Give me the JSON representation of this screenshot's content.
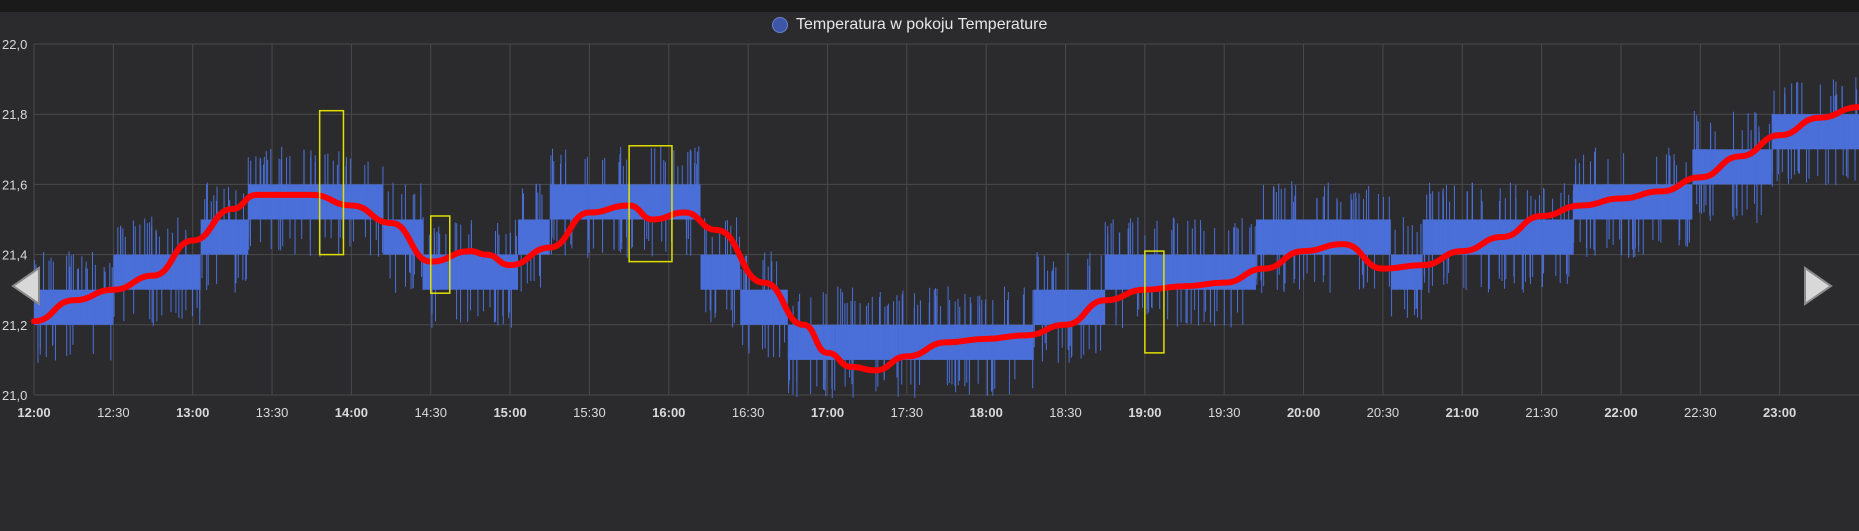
{
  "colors": {
    "background": "#2b2b2d",
    "grid": "#4a4a4d",
    "axis_text": "#d9d9d9",
    "series_fill": "#4a6fd8",
    "series_legend": "#3e56a8",
    "trend": "#ff0000",
    "highlight": "#e0e000"
  },
  "icons": {
    "prev": "triangle-left-icon",
    "next": "triangle-right-icon"
  },
  "chart_data": {
    "type": "line",
    "legend_position": "top-center",
    "grid": true,
    "ylim": [
      21.0,
      22.0
    ],
    "y_ticks": [
      "21,0",
      "21,2",
      "21,4",
      "21,6",
      "21,8",
      "22,0"
    ],
    "y_tick_values": [
      21.0,
      21.2,
      21.4,
      21.6,
      21.8,
      22.0
    ],
    "x_ticks": [
      {
        "label": "12:00",
        "hour": 12.0,
        "bold": true
      },
      {
        "label": "12:30",
        "hour": 12.5,
        "bold": false
      },
      {
        "label": "13:00",
        "hour": 13.0,
        "bold": true
      },
      {
        "label": "13:30",
        "hour": 13.5,
        "bold": false
      },
      {
        "label": "14:00",
        "hour": 14.0,
        "bold": true
      },
      {
        "label": "14:30",
        "hour": 14.5,
        "bold": false
      },
      {
        "label": "15:00",
        "hour": 15.0,
        "bold": true
      },
      {
        "label": "15:30",
        "hour": 15.5,
        "bold": false
      },
      {
        "label": "16:00",
        "hour": 16.0,
        "bold": true
      },
      {
        "label": "16:30",
        "hour": 16.5,
        "bold": false
      },
      {
        "label": "17:00",
        "hour": 17.0,
        "bold": true
      },
      {
        "label": "17:30",
        "hour": 17.5,
        "bold": false
      },
      {
        "label": "18:00",
        "hour": 18.0,
        "bold": true
      },
      {
        "label": "18:30",
        "hour": 18.5,
        "bold": false
      },
      {
        "label": "19:00",
        "hour": 19.0,
        "bold": true
      },
      {
        "label": "19:30",
        "hour": 19.5,
        "bold": false
      },
      {
        "label": "20:00",
        "hour": 20.0,
        "bold": true
      },
      {
        "label": "20:30",
        "hour": 20.5,
        "bold": false
      },
      {
        "label": "21:00",
        "hour": 21.0,
        "bold": true
      },
      {
        "label": "21:30",
        "hour": 21.5,
        "bold": false
      },
      {
        "label": "22:00",
        "hour": 22.0,
        "bold": true
      },
      {
        "label": "22:30",
        "hour": 22.5,
        "bold": false
      },
      {
        "label": "23:00",
        "hour": 23.0,
        "bold": true
      }
    ],
    "xlim_hours": [
      12.0,
      23.5
    ],
    "series": [
      {
        "name": "Temperatura w pokoju Temperature",
        "style": "step-band",
        "segments": [
          {
            "t0": 12.0,
            "t1": 12.5,
            "low": 21.2,
            "high": 21.3
          },
          {
            "t0": 12.5,
            "t1": 13.05,
            "low": 21.3,
            "high": 21.4
          },
          {
            "t0": 13.05,
            "t1": 13.35,
            "low": 21.4,
            "high": 21.5
          },
          {
            "t0": 13.35,
            "t1": 14.2,
            "low": 21.5,
            "high": 21.6
          },
          {
            "t0": 14.2,
            "t1": 14.45,
            "low": 21.4,
            "high": 21.5
          },
          {
            "t0": 14.45,
            "t1": 15.05,
            "low": 21.3,
            "high": 21.4
          },
          {
            "t0": 15.05,
            "t1": 15.25,
            "low": 21.4,
            "high": 21.5
          },
          {
            "t0": 15.25,
            "t1": 16.2,
            "low": 21.5,
            "high": 21.6
          },
          {
            "t0": 16.2,
            "t1": 16.45,
            "low": 21.3,
            "high": 21.4
          },
          {
            "t0": 16.45,
            "t1": 16.75,
            "low": 21.2,
            "high": 21.3
          },
          {
            "t0": 16.75,
            "t1": 17.05,
            "low": 21.1,
            "high": 21.2
          },
          {
            "t0": 17.05,
            "t1": 17.45,
            "low": 21.1,
            "high": 21.2
          },
          {
            "t0": 17.45,
            "t1": 18.3,
            "low": 21.1,
            "high": 21.2
          },
          {
            "t0": 18.3,
            "t1": 18.75,
            "low": 21.2,
            "high": 21.3
          },
          {
            "t0": 18.75,
            "t1": 19.3,
            "low": 21.3,
            "high": 21.4
          },
          {
            "t0": 19.3,
            "t1": 19.7,
            "low": 21.3,
            "high": 21.4
          },
          {
            "t0": 19.7,
            "t1": 20.55,
            "low": 21.4,
            "high": 21.5
          },
          {
            "t0": 20.55,
            "t1": 20.75,
            "low": 21.3,
            "high": 21.4
          },
          {
            "t0": 20.75,
            "t1": 21.7,
            "low": 21.4,
            "high": 21.5
          },
          {
            "t0": 21.7,
            "t1": 22.45,
            "low": 21.5,
            "high": 21.6
          },
          {
            "t0": 22.45,
            "t1": 22.95,
            "low": 21.6,
            "high": 21.7
          },
          {
            "t0": 22.95,
            "t1": 23.5,
            "low": 21.7,
            "high": 21.8
          }
        ]
      },
      {
        "name": "",
        "style": "trend-line",
        "x": [
          12.0,
          12.25,
          12.5,
          12.75,
          13.0,
          13.25,
          13.4,
          13.75,
          14.0,
          14.25,
          14.5,
          14.75,
          14.85,
          15.0,
          15.25,
          15.5,
          15.75,
          15.9,
          16.1,
          16.3,
          16.6,
          16.85,
          17.0,
          17.15,
          17.3,
          17.5,
          17.75,
          18.0,
          18.25,
          18.5,
          18.75,
          19.0,
          19.25,
          19.5,
          19.75,
          20.0,
          20.25,
          20.5,
          20.75,
          21.0,
          21.25,
          21.5,
          21.75,
          22.0,
          22.25,
          22.5,
          22.75,
          23.0,
          23.25,
          23.5
        ],
        "y": [
          21.21,
          21.27,
          21.3,
          21.34,
          21.44,
          21.53,
          21.57,
          21.57,
          21.54,
          21.49,
          21.38,
          21.41,
          21.4,
          21.37,
          21.42,
          21.52,
          21.54,
          21.5,
          21.52,
          21.47,
          21.32,
          21.2,
          21.12,
          21.08,
          21.07,
          21.11,
          21.15,
          21.16,
          21.17,
          21.2,
          21.27,
          21.3,
          21.31,
          21.32,
          21.36,
          21.41,
          21.43,
          21.36,
          21.37,
          21.41,
          21.45,
          21.51,
          21.54,
          21.56,
          21.58,
          21.62,
          21.68,
          21.74,
          21.79,
          21.82
        ]
      }
    ],
    "highlight_boxes": [
      {
        "t0": 13.8,
        "t1": 13.95,
        "low": 21.4,
        "high": 21.81
      },
      {
        "t0": 14.5,
        "t1": 14.62,
        "low": 21.29,
        "high": 21.51
      },
      {
        "t0": 15.75,
        "t1": 16.02,
        "low": 21.38,
        "high": 21.71
      },
      {
        "t0": 19.0,
        "t1": 19.12,
        "low": 21.12,
        "high": 21.41
      }
    ]
  }
}
